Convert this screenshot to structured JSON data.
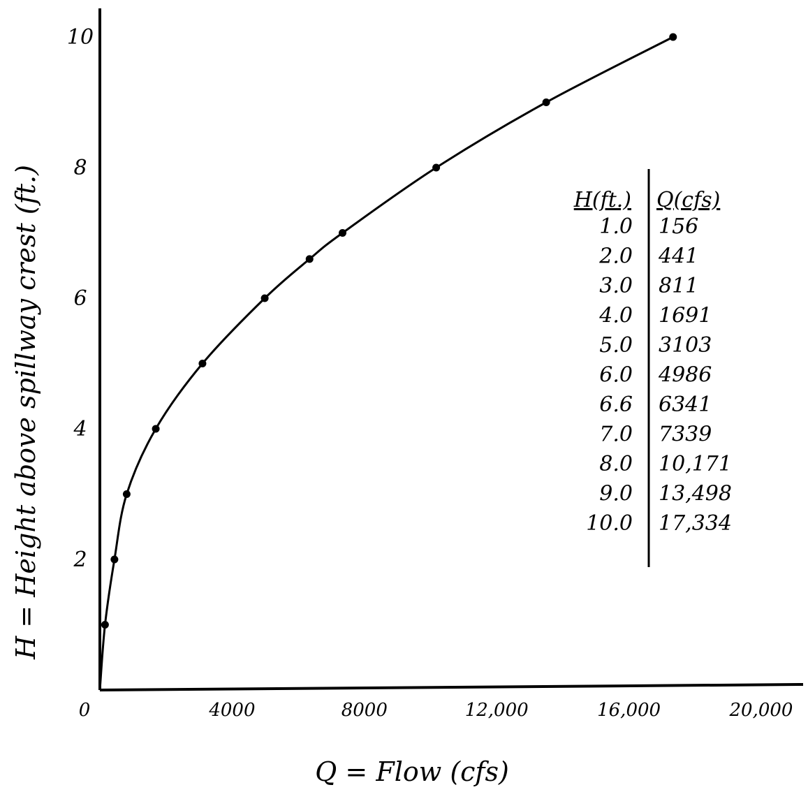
{
  "chart_data": {
    "type": "line",
    "title": "",
    "xlabel": "Q = Flow (cfs)",
    "ylabel": "H = Height above spillway crest (ft.)",
    "xlim": [
      0,
      20000
    ],
    "ylim": [
      0,
      10
    ],
    "x_ticks": [
      {
        "value": 0,
        "label": "0"
      },
      {
        "value": 4000,
        "label": "4000"
      },
      {
        "value": 8000,
        "label": "8000"
      },
      {
        "value": 12000,
        "label": "12,000"
      },
      {
        "value": 16000,
        "label": "16,000"
      },
      {
        "value": 20000,
        "label": "20,000"
      }
    ],
    "y_ticks": [
      {
        "value": 2,
        "label": "2"
      },
      {
        "value": 4,
        "label": "4"
      },
      {
        "value": 6,
        "label": "6"
      },
      {
        "value": 8,
        "label": "8"
      },
      {
        "value": 10,
        "label": "10"
      }
    ],
    "grid": false,
    "series": [
      {
        "x": [
          0,
          156,
          441,
          811,
          1691,
          3103,
          4986,
          6341,
          7339,
          10171,
          13498,
          17334
        ],
        "y": [
          0,
          1.0,
          2.0,
          3.0,
          4.0,
          5.0,
          6.0,
          6.6,
          7.0,
          8.0,
          9.0,
          10.0
        ]
      }
    ],
    "table": {
      "headers": [
        "H(ft.)",
        "Q(cfs)"
      ],
      "rows": [
        [
          "1.0",
          "156"
        ],
        [
          "2.0",
          "441"
        ],
        [
          "3.0",
          "811"
        ],
        [
          "4.0",
          "1691"
        ],
        [
          "5.0",
          "3103"
        ],
        [
          "6.0",
          "4986"
        ],
        [
          "6.6",
          "6341"
        ],
        [
          "7.0",
          "7339"
        ],
        [
          "8.0",
          "10,171"
        ],
        [
          "9.0",
          "13,498"
        ],
        [
          "10.0",
          "17,334"
        ]
      ]
    },
    "colors": {
      "ink": "#000000",
      "background": "#ffffff"
    }
  }
}
